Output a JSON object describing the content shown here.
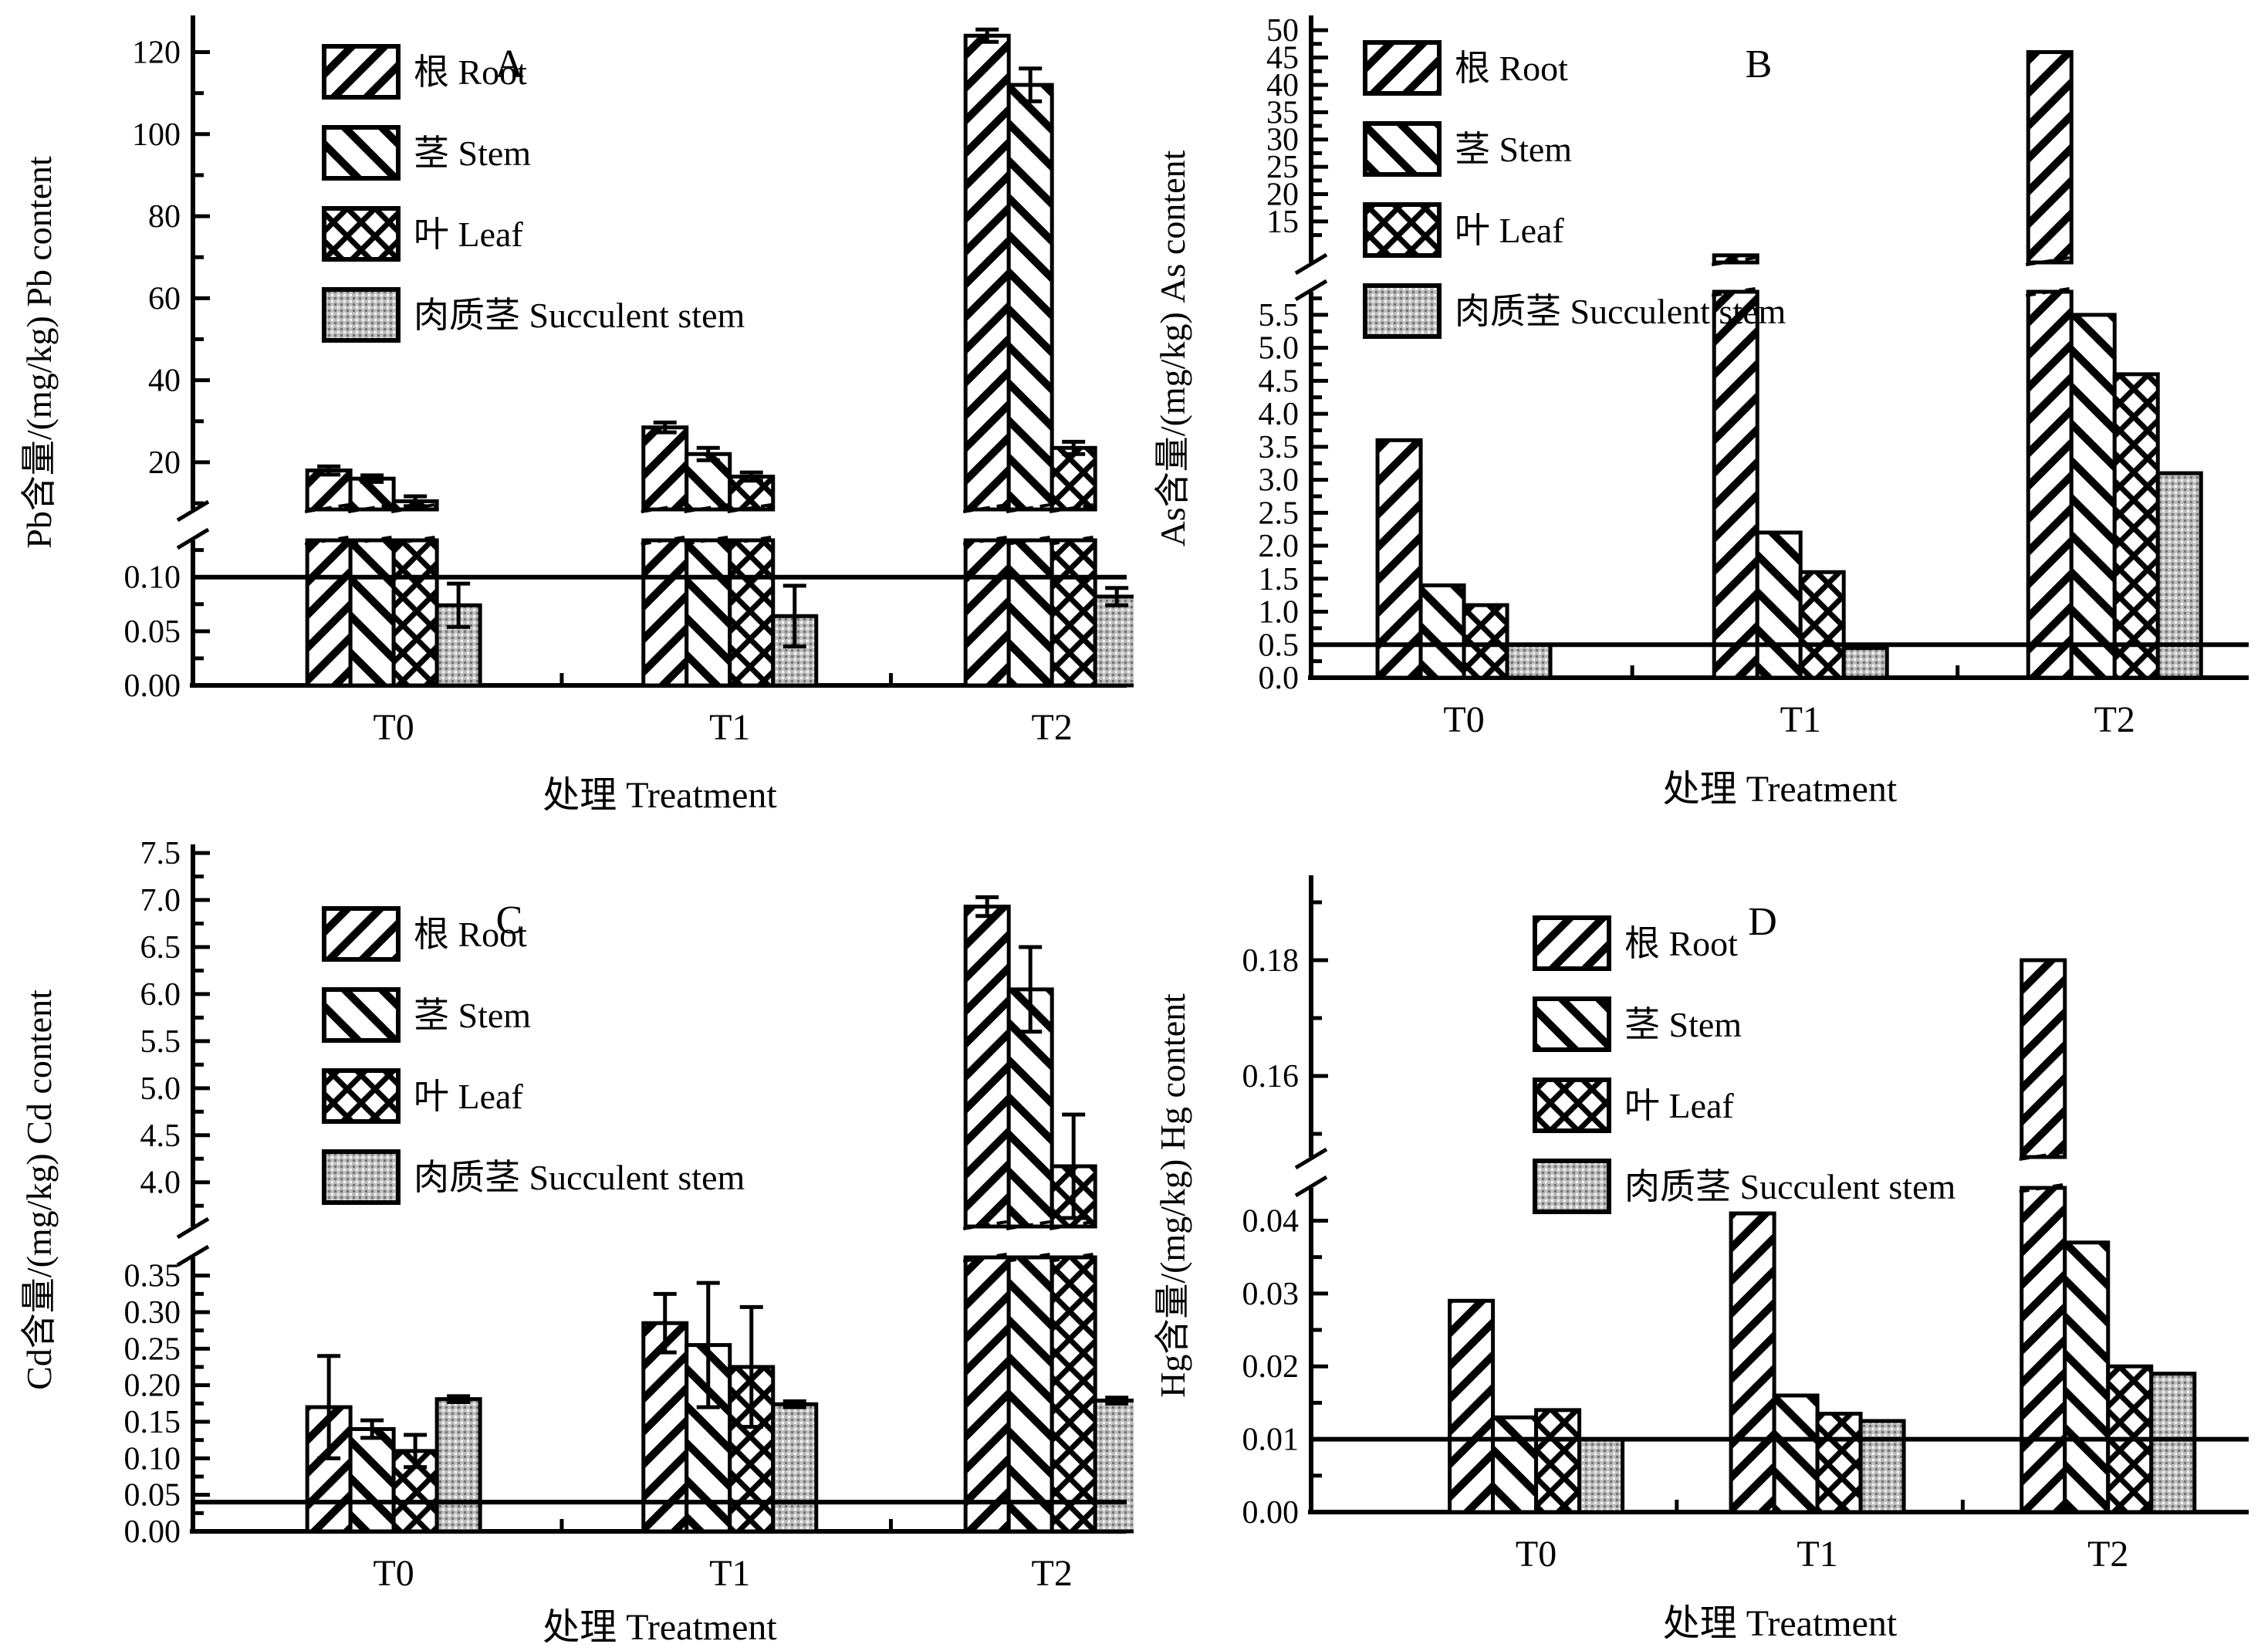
{
  "figure": {
    "background": "#ffffff",
    "ink_color": "#000000",
    "succulent_fill": "#bdbdbd",
    "succulent_dot": "#6f6f6f",
    "xlabel": "处理 Treatment",
    "treatments": [
      "T0",
      "T1",
      "T2"
    ],
    "legend": [
      "根 Root",
      "茎 Stem",
      "叶 Leaf",
      "肉质茎 Succulent stem"
    ]
  },
  "chart_data": [
    {
      "type": "bar",
      "label": "A",
      "element": "Pb",
      "title": "A",
      "ylabel": "Pb含量/(mg/kg)  Pb content",
      "xlabel": "处理 Treatment",
      "categories": [
        "T0",
        "T1",
        "T2"
      ],
      "legend_position": "upper-left-inside",
      "grid": false,
      "series": [
        {
          "name": "根 Root",
          "values": [
            18,
            28.5,
            124
          ],
          "errors": [
            1.0,
            1.2,
            1.5
          ]
        },
        {
          "name": "茎 Stem",
          "values": [
            16,
            22,
            112
          ],
          "errors": [
            0.8,
            1.5,
            4
          ]
        },
        {
          "name": "叶 Leaf",
          "values": [
            10.5,
            16.5,
            23.5
          ],
          "errors": [
            1.2,
            1.0,
            1.5
          ]
        },
        {
          "name": "肉质茎 Succulent stem",
          "values": [
            0.074,
            0.064,
            0.082
          ],
          "errors": [
            0.02,
            0.028,
            0.008
          ]
        }
      ],
      "reference_line": 0.1,
      "axis": {
        "lower_max": 0.134,
        "upper_min": 8.5,
        "upper_max": 128,
        "lower_ticks": [
          {
            "v": 0,
            "t": "0.00"
          },
          {
            "v": 0.05,
            "t": "0.05"
          },
          {
            "v": 0.1,
            "t": "0.10"
          }
        ],
        "lower_minor": [
          0.025,
          0.075,
          0.125
        ],
        "upper_ticks": [
          {
            "v": 20,
            "t": "20"
          },
          {
            "v": 40,
            "t": "40"
          },
          {
            "v": 60,
            "t": "60"
          },
          {
            "v": 80,
            "t": "80"
          },
          {
            "v": 100,
            "t": "100"
          },
          {
            "v": 120,
            "t": "120"
          }
        ],
        "upper_minor": [
          10,
          30,
          50,
          70,
          90,
          110
        ]
      }
    },
    {
      "type": "bar",
      "label": "B",
      "element": "As",
      "title": "B",
      "ylabel": "As含量/(mg/kg)  As content",
      "xlabel": "处理 Treatment",
      "categories": [
        "T0",
        "T1",
        "T2"
      ],
      "legend_position": "upper-left-inside",
      "grid": false,
      "series": [
        {
          "name": "根 Root",
          "values": [
            3.6,
            8.8,
            46
          ],
          "errors": [
            0,
            0,
            0
          ]
        },
        {
          "name": "茎 Stem",
          "values": [
            1.4,
            2.2,
            5.5
          ],
          "errors": [
            0,
            0,
            0
          ]
        },
        {
          "name": "叶 Leaf",
          "values": [
            1.1,
            1.6,
            4.6
          ],
          "errors": [
            0,
            0,
            0
          ]
        },
        {
          "name": "肉质茎 Succulent stem",
          "values": [
            0.5,
            0.45,
            3.1
          ],
          "errors": [
            0,
            0,
            0
          ]
        }
      ],
      "reference_line": 0.5,
      "axis": {
        "lower_max": 5.85,
        "upper_min": 7.5,
        "upper_max": 52,
        "lower_ticks": [
          {
            "v": 0,
            "t": "0.0"
          },
          {
            "v": 0.5,
            "t": "0.5"
          },
          {
            "v": 1.0,
            "t": "1.0"
          },
          {
            "v": 1.5,
            "t": "1.5"
          },
          {
            "v": 2.0,
            "t": "2.0"
          },
          {
            "v": 2.5,
            "t": "2.5"
          },
          {
            "v": 3.0,
            "t": "3.0"
          },
          {
            "v": 3.5,
            "t": "3.5"
          },
          {
            "v": 4.0,
            "t": "4.0"
          },
          {
            "v": 4.5,
            "t": "4.5"
          },
          {
            "v": 5.0,
            "t": "5.0"
          },
          {
            "v": 5.5,
            "t": "5.5"
          }
        ],
        "lower_minor": [
          0.25,
          0.75,
          1.25,
          1.75,
          2.25,
          2.75,
          3.25,
          3.75,
          4.25,
          4.75,
          5.25,
          5.75
        ],
        "upper_ticks": [
          {
            "v": 15,
            "t": "15"
          },
          {
            "v": 20,
            "t": "20"
          },
          {
            "v": 25,
            "t": "25"
          },
          {
            "v": 30,
            "t": "30"
          },
          {
            "v": 35,
            "t": "35"
          },
          {
            "v": 40,
            "t": "40"
          },
          {
            "v": 45,
            "t": "45"
          },
          {
            "v": 50,
            "t": "50"
          }
        ],
        "upper_minor": [
          12.5,
          17.5,
          22.5,
          27.5,
          32.5,
          37.5,
          42.5,
          47.5
        ]
      }
    },
    {
      "type": "bar",
      "label": "C",
      "element": "Cd",
      "title": "C",
      "ylabel": "Cd含量/(mg/kg)  Cd content",
      "xlabel": "处理 Treatment",
      "categories": [
        "T0",
        "T1",
        "T2"
      ],
      "legend_position": "upper-left-inside",
      "grid": false,
      "series": [
        {
          "name": "根 Root",
          "values": [
            0.17,
            0.285,
            6.93
          ],
          "errors": [
            0.07,
            0.04,
            0.1
          ]
        },
        {
          "name": "茎 Stem",
          "values": [
            0.14,
            0.255,
            6.05
          ],
          "errors": [
            0.012,
            0.085,
            0.45
          ]
        },
        {
          "name": "叶 Leaf",
          "values": [
            0.11,
            0.225,
            4.17
          ],
          "errors": [
            0.022,
            0.082,
            0.55
          ]
        },
        {
          "name": "肉质茎 Succulent stem",
          "values": [
            0.181,
            0.174,
            0.179
          ],
          "errors": [
            0.004,
            0.004,
            0.004
          ]
        }
      ],
      "reference_line": 0.04,
      "axis": {
        "lower_max": 0.375,
        "upper_min": 3.53,
        "upper_max": 7.55,
        "lower_ticks": [
          {
            "v": 0,
            "t": "0.00"
          },
          {
            "v": 0.05,
            "t": "0.05"
          },
          {
            "v": 0.1,
            "t": "0.10"
          },
          {
            "v": 0.15,
            "t": "0.15"
          },
          {
            "v": 0.2,
            "t": "0.20"
          },
          {
            "v": 0.25,
            "t": "0.25"
          },
          {
            "v": 0.3,
            "t": "0.30"
          },
          {
            "v": 0.35,
            "t": "0.35"
          }
        ],
        "lower_minor": [
          0.025,
          0.075,
          0.125,
          0.175,
          0.225,
          0.275,
          0.325
        ],
        "upper_ticks": [
          {
            "v": 4.0,
            "t": "4.0"
          },
          {
            "v": 4.5,
            "t": "4.5"
          },
          {
            "v": 5.0,
            "t": "5.0"
          },
          {
            "v": 5.5,
            "t": "5.5"
          },
          {
            "v": 6.0,
            "t": "6.0"
          },
          {
            "v": 6.5,
            "t": "6.5"
          },
          {
            "v": 7.0,
            "t": "7.0"
          },
          {
            "v": 7.5,
            "t": "7.5"
          }
        ],
        "upper_minor": [
          3.75,
          4.25,
          4.75,
          5.25,
          5.75,
          6.25,
          6.75,
          7.25
        ]
      }
    },
    {
      "type": "bar",
      "label": "D",
      "element": "Hg",
      "title": "D",
      "ylabel": "Hg含量/(mg/kg)  Hg content",
      "xlabel": "处理 Treatment",
      "categories": [
        "T0",
        "T1",
        "T2"
      ],
      "legend_position": "upper-left-inside",
      "grid": false,
      "series": [
        {
          "name": "根 Root",
          "values": [
            0.029,
            0.041,
            0.18
          ],
          "errors": [
            0,
            0,
            0
          ]
        },
        {
          "name": "茎 Stem",
          "values": [
            0.013,
            0.016,
            0.037
          ],
          "errors": [
            0,
            0,
            0
          ]
        },
        {
          "name": "叶 Leaf",
          "values": [
            0.014,
            0.0135,
            0.02
          ],
          "errors": [
            0,
            0,
            0
          ]
        },
        {
          "name": "肉质茎 Succulent stem",
          "values": [
            0.01,
            0.0125,
            0.019
          ],
          "errors": [
            0,
            0,
            0
          ]
        }
      ],
      "reference_line": 0.01,
      "axis": {
        "lower_max": 0.0445,
        "upper_min": 0.146,
        "upper_max": 0.194,
        "lower_ticks": [
          {
            "v": 0,
            "t": "0.00"
          },
          {
            "v": 0.01,
            "t": "0.01"
          },
          {
            "v": 0.02,
            "t": "0.02"
          },
          {
            "v": 0.03,
            "t": "0.03"
          },
          {
            "v": 0.04,
            "t": "0.04"
          }
        ],
        "lower_minor": [
          0.005,
          0.015,
          0.025,
          0.035
        ],
        "upper_ticks": [
          {
            "v": 0.16,
            "t": "0.16"
          },
          {
            "v": 0.18,
            "t": "0.18"
          }
        ],
        "upper_minor": [
          0.15,
          0.17,
          0.19
        ]
      }
    }
  ]
}
